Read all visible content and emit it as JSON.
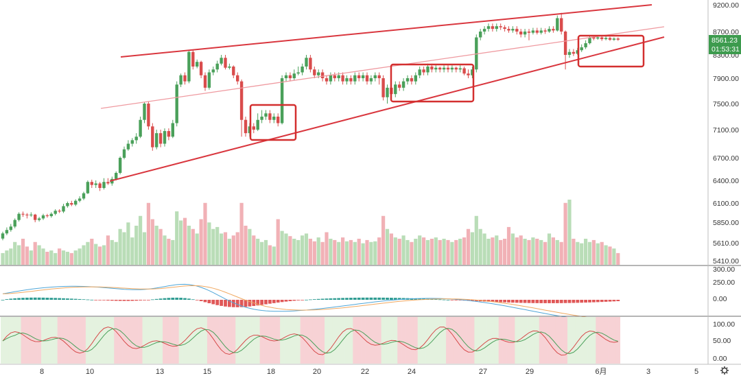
{
  "chart_data": {
    "type": "candlestick",
    "price_axis": {
      "ticks": [
        9200,
        8700,
        8300,
        7900,
        7500,
        7100,
        6700,
        6400,
        6100,
        5850,
        5610,
        5410
      ],
      "tick_labels": [
        "9200.00",
        "8700.00",
        "8300.00",
        "7900.00",
        "7500.00",
        "7100.00",
        "6700.00",
        "6400.00",
        "6100.00",
        "5850.00",
        "5610.00",
        "5410.00"
      ],
      "last_price_label": "8561.23",
      "countdown_label": "01:53:31"
    },
    "x_axis": {
      "tick_labels": [
        "8",
        "10",
        "13",
        "15",
        "18",
        "20",
        "22",
        "24",
        "27",
        "29",
        "6月",
        "3",
        "5"
      ]
    },
    "candles": [
      {
        "o": 5660,
        "c": 5720,
        "h": 5740,
        "l": 5640
      },
      {
        "o": 5720,
        "c": 5760,
        "h": 5790,
        "l": 5700
      },
      {
        "o": 5760,
        "c": 5800,
        "h": 5830,
        "l": 5740
      },
      {
        "o": 5800,
        "c": 5880,
        "h": 5900,
        "l": 5780
      },
      {
        "o": 5880,
        "c": 5960,
        "h": 5980,
        "l": 5860
      },
      {
        "o": 5960,
        "c": 5950,
        "h": 5990,
        "l": 5920
      },
      {
        "o": 5950,
        "c": 5940,
        "h": 5970,
        "l": 5900
      },
      {
        "o": 5940,
        "c": 5950,
        "h": 5980,
        "l": 5920
      },
      {
        "o": 5950,
        "c": 5880,
        "h": 5960,
        "l": 5850
      },
      {
        "o": 5880,
        "c": 5900,
        "h": 5920,
        "l": 5860
      },
      {
        "o": 5900,
        "c": 5940,
        "h": 5960,
        "l": 5880
      },
      {
        "o": 5940,
        "c": 5930,
        "h": 5960,
        "l": 5910
      },
      {
        "o": 5930,
        "c": 5960,
        "h": 5980,
        "l": 5910
      },
      {
        "o": 5960,
        "c": 6000,
        "h": 6020,
        "l": 5940
      },
      {
        "o": 6000,
        "c": 5990,
        "h": 6020,
        "l": 5970
      },
      {
        "o": 5990,
        "c": 6060,
        "h": 6090,
        "l": 5970
      },
      {
        "o": 6060,
        "c": 6100,
        "h": 6120,
        "l": 6040
      },
      {
        "o": 6100,
        "c": 6080,
        "h": 6130,
        "l": 6060
      },
      {
        "o": 6080,
        "c": 6130,
        "h": 6150,
        "l": 6060
      },
      {
        "o": 6130,
        "c": 6160,
        "h": 6190,
        "l": 6110
      },
      {
        "o": 6160,
        "c": 6230,
        "h": 6250,
        "l": 6140
      },
      {
        "o": 6230,
        "c": 6380,
        "h": 6400,
        "l": 6220
      },
      {
        "o": 6380,
        "c": 6340,
        "h": 6410,
        "l": 6300
      },
      {
        "o": 6340,
        "c": 6360,
        "h": 6400,
        "l": 6300
      },
      {
        "o": 6360,
        "c": 6300,
        "h": 6380,
        "l": 6260
      },
      {
        "o": 6300,
        "c": 6380,
        "h": 6430,
        "l": 6280
      },
      {
        "o": 6380,
        "c": 6360,
        "h": 6430,
        "l": 6340
      },
      {
        "o": 6360,
        "c": 6420,
        "h": 6450,
        "l": 6330
      },
      {
        "o": 6420,
        "c": 6500,
        "h": 6520,
        "l": 6400
      },
      {
        "o": 6500,
        "c": 6700,
        "h": 6720,
        "l": 6480
      },
      {
        "o": 6700,
        "c": 6820,
        "h": 6860,
        "l": 6680
      },
      {
        "o": 6820,
        "c": 6900,
        "h": 6950,
        "l": 6800
      },
      {
        "o": 6900,
        "c": 6950,
        "h": 6980,
        "l": 6860
      },
      {
        "o": 6950,
        "c": 7000,
        "h": 7050,
        "l": 6900
      },
      {
        "o": 7000,
        "c": 7250,
        "h": 7300,
        "l": 6980
      },
      {
        "o": 7250,
        "c": 7500,
        "h": 7520,
        "l": 7200
      },
      {
        "o": 7500,
        "c": 7150,
        "h": 7530,
        "l": 7100
      },
      {
        "o": 7150,
        "c": 6850,
        "h": 7200,
        "l": 6800
      },
      {
        "o": 6850,
        "c": 7050,
        "h": 7100,
        "l": 6820
      },
      {
        "o": 7050,
        "c": 6900,
        "h": 7100,
        "l": 6850
      },
      {
        "o": 6900,
        "c": 7080,
        "h": 7120,
        "l": 6860
      },
      {
        "o": 7080,
        "c": 7000,
        "h": 7120,
        "l": 6950
      },
      {
        "o": 7000,
        "c": 7200,
        "h": 7250,
        "l": 6980
      },
      {
        "o": 7200,
        "c": 7800,
        "h": 7850,
        "l": 7150
      },
      {
        "o": 7800,
        "c": 7950,
        "h": 7980,
        "l": 7760
      },
      {
        "o": 7950,
        "c": 7850,
        "h": 8000,
        "l": 7800
      },
      {
        "o": 7850,
        "c": 8350,
        "h": 8380,
        "l": 7820
      },
      {
        "o": 8350,
        "c": 8100,
        "h": 8380,
        "l": 8050
      },
      {
        "o": 8100,
        "c": 8180,
        "h": 8220,
        "l": 8070
      },
      {
        "o": 8180,
        "c": 7950,
        "h": 8200,
        "l": 7900
      },
      {
        "o": 7950,
        "c": 7750,
        "h": 8000,
        "l": 7700
      },
      {
        "o": 7750,
        "c": 8000,
        "h": 8050,
        "l": 7720
      },
      {
        "o": 8000,
        "c": 8050,
        "h": 8100,
        "l": 7950
      },
      {
        "o": 8050,
        "c": 8150,
        "h": 8200,
        "l": 8000
      },
      {
        "o": 8150,
        "c": 8250,
        "h": 8300,
        "l": 8120
      },
      {
        "o": 8250,
        "c": 8080,
        "h": 8300,
        "l": 8050
      },
      {
        "o": 8080,
        "c": 8100,
        "h": 8150,
        "l": 8050
      },
      {
        "o": 8100,
        "c": 7950,
        "h": 8120,
        "l": 7900
      },
      {
        "o": 7950,
        "c": 7850,
        "h": 8000,
        "l": 7800
      },
      {
        "o": 7850,
        "c": 7250,
        "h": 7880,
        "l": 7000
      },
      {
        "o": 7250,
        "c": 7050,
        "h": 7300,
        "l": 7000
      },
      {
        "o": 7050,
        "c": 7150,
        "h": 7200,
        "l": 7000
      },
      {
        "o": 7150,
        "c": 7100,
        "h": 7200,
        "l": 7050
      },
      {
        "o": 7100,
        "c": 7250,
        "h": 7350,
        "l": 7080
      },
      {
        "o": 7250,
        "c": 7300,
        "h": 7400,
        "l": 7200
      },
      {
        "o": 7300,
        "c": 7350,
        "h": 7400,
        "l": 7250
      },
      {
        "o": 7350,
        "c": 7250,
        "h": 7400,
        "l": 7200
      },
      {
        "o": 7250,
        "c": 7300,
        "h": 7350,
        "l": 7200
      },
      {
        "o": 7300,
        "c": 7200,
        "h": 7350,
        "l": 7150
      },
      {
        "o": 7200,
        "c": 7900,
        "h": 7950,
        "l": 7180
      },
      {
        "o": 7900,
        "c": 7950,
        "h": 8000,
        "l": 7850
      },
      {
        "o": 7950,
        "c": 7900,
        "h": 8000,
        "l": 7850
      },
      {
        "o": 7900,
        "c": 7980,
        "h": 8050,
        "l": 7870
      },
      {
        "o": 7980,
        "c": 8000,
        "h": 8100,
        "l": 7950
      },
      {
        "o": 8000,
        "c": 8100,
        "h": 8150,
        "l": 7950
      },
      {
        "o": 8100,
        "c": 8250,
        "h": 8300,
        "l": 8050
      },
      {
        "o": 8250,
        "c": 8050,
        "h": 8300,
        "l": 8000
      },
      {
        "o": 8050,
        "c": 7950,
        "h": 8100,
        "l": 7900
      },
      {
        "o": 7950,
        "c": 8000,
        "h": 8050,
        "l": 7900
      },
      {
        "o": 8000,
        "c": 7900,
        "h": 8050,
        "l": 7850
      },
      {
        "o": 7900,
        "c": 7850,
        "h": 7950,
        "l": 7800
      },
      {
        "o": 7850,
        "c": 7950,
        "h": 8000,
        "l": 7800
      },
      {
        "o": 7950,
        "c": 7900,
        "h": 8000,
        "l": 7850
      },
      {
        "o": 7900,
        "c": 7950,
        "h": 8000,
        "l": 7850
      },
      {
        "o": 7950,
        "c": 7850,
        "h": 8000,
        "l": 7800
      },
      {
        "o": 7850,
        "c": 7900,
        "h": 7950,
        "l": 7800
      },
      {
        "o": 7900,
        "c": 7850,
        "h": 7950,
        "l": 7800
      },
      {
        "o": 7850,
        "c": 7950,
        "h": 8000,
        "l": 7800
      },
      {
        "o": 7950,
        "c": 7900,
        "h": 8000,
        "l": 7850
      },
      {
        "o": 7900,
        "c": 7950,
        "h": 8000,
        "l": 7850
      },
      {
        "o": 7950,
        "c": 7850,
        "h": 8000,
        "l": 7800
      },
      {
        "o": 7850,
        "c": 7900,
        "h": 7950,
        "l": 7800
      },
      {
        "o": 7900,
        "c": 7950,
        "h": 8000,
        "l": 7850
      },
      {
        "o": 7950,
        "c": 7900,
        "h": 8000,
        "l": 7800
      },
      {
        "o": 7900,
        "c": 7600,
        "h": 7950,
        "l": 7550
      },
      {
        "o": 7600,
        "c": 7750,
        "h": 7800,
        "l": 7500
      },
      {
        "o": 7750,
        "c": 7650,
        "h": 7800,
        "l": 7600
      },
      {
        "o": 7650,
        "c": 7800,
        "h": 7850,
        "l": 7600
      },
      {
        "o": 7800,
        "c": 7750,
        "h": 7850,
        "l": 7700
      },
      {
        "o": 7750,
        "c": 7850,
        "h": 7900,
        "l": 7700
      },
      {
        "o": 7850,
        "c": 7900,
        "h": 7950,
        "l": 7800
      },
      {
        "o": 7900,
        "c": 7850,
        "h": 7950,
        "l": 7800
      },
      {
        "o": 7850,
        "c": 7950,
        "h": 8000,
        "l": 7800
      },
      {
        "o": 7950,
        "c": 8050,
        "h": 8100,
        "l": 7900
      },
      {
        "o": 8050,
        "c": 8000,
        "h": 8100,
        "l": 7950
      },
      {
        "o": 8000,
        "c": 8100,
        "h": 8150,
        "l": 7950
      },
      {
        "o": 8100,
        "c": 8050,
        "h": 8150,
        "l": 8000
      },
      {
        "o": 8050,
        "c": 8080,
        "h": 8120,
        "l": 8000
      },
      {
        "o": 8080,
        "c": 8050,
        "h": 8100,
        "l": 8000
      },
      {
        "o": 8050,
        "c": 8080,
        "h": 8120,
        "l": 8000
      },
      {
        "o": 8080,
        "c": 8050,
        "h": 8120,
        "l": 8000
      },
      {
        "o": 8050,
        "c": 8080,
        "h": 8120,
        "l": 8000
      },
      {
        "o": 8080,
        "c": 8050,
        "h": 8100,
        "l": 8000
      },
      {
        "o": 8050,
        "c": 8070,
        "h": 8120,
        "l": 8000
      },
      {
        "o": 8070,
        "c": 7980,
        "h": 8100,
        "l": 7950
      },
      {
        "o": 7980,
        "c": 7950,
        "h": 8050,
        "l": 7900
      },
      {
        "o": 7950,
        "c": 8050,
        "h": 8100,
        "l": 7900
      },
      {
        "o": 8050,
        "c": 8600,
        "h": 8650,
        "l": 8000
      },
      {
        "o": 8600,
        "c": 8700,
        "h": 8750,
        "l": 8550
      },
      {
        "o": 8700,
        "c": 8750,
        "h": 8800,
        "l": 8650
      },
      {
        "o": 8750,
        "c": 8800,
        "h": 8850,
        "l": 8700
      },
      {
        "o": 8800,
        "c": 8750,
        "h": 8850,
        "l": 8700
      },
      {
        "o": 8750,
        "c": 8800,
        "h": 8850,
        "l": 8700
      },
      {
        "o": 8800,
        "c": 8780,
        "h": 8850,
        "l": 8730
      },
      {
        "o": 8780,
        "c": 8750,
        "h": 8820,
        "l": 8700
      },
      {
        "o": 8750,
        "c": 8720,
        "h": 8800,
        "l": 8680
      },
      {
        "o": 8720,
        "c": 8750,
        "h": 8800,
        "l": 8680
      },
      {
        "o": 8750,
        "c": 8700,
        "h": 8800,
        "l": 8650
      },
      {
        "o": 8700,
        "c": 8650,
        "h": 8750,
        "l": 8600
      },
      {
        "o": 8650,
        "c": 8700,
        "h": 8750,
        "l": 8600
      },
      {
        "o": 8700,
        "c": 8680,
        "h": 8750,
        "l": 8550
      },
      {
        "o": 8680,
        "c": 8720,
        "h": 8770,
        "l": 8650
      },
      {
        "o": 8720,
        "c": 8680,
        "h": 8770,
        "l": 8650
      },
      {
        "o": 8680,
        "c": 8720,
        "h": 8770,
        "l": 8650
      },
      {
        "o": 8720,
        "c": 8700,
        "h": 8760,
        "l": 8660
      },
      {
        "o": 8700,
        "c": 8750,
        "h": 8800,
        "l": 8680
      },
      {
        "o": 8750,
        "c": 8720,
        "h": 8800,
        "l": 8680
      },
      {
        "o": 8720,
        "c": 8950,
        "h": 9000,
        "l": 8700
      },
      {
        "o": 8950,
        "c": 8700,
        "h": 9050,
        "l": 8650
      },
      {
        "o": 8700,
        "c": 8300,
        "h": 8720,
        "l": 8050
      },
      {
        "o": 8300,
        "c": 8350,
        "h": 8400,
        "l": 8250
      },
      {
        "o": 8350,
        "c": 8320,
        "h": 8400,
        "l": 8280
      },
      {
        "o": 8320,
        "c": 8380,
        "h": 8420,
        "l": 8300
      },
      {
        "o": 8380,
        "c": 8430,
        "h": 8480,
        "l": 8350
      },
      {
        "o": 8430,
        "c": 8500,
        "h": 8550,
        "l": 8400
      },
      {
        "o": 8500,
        "c": 8600,
        "h": 8620,
        "l": 8480
      },
      {
        "o": 8600,
        "c": 8580,
        "h": 8620,
        "l": 8550
      },
      {
        "o": 8580,
        "c": 8600,
        "h": 8630,
        "l": 8560
      },
      {
        "o": 8600,
        "c": 8570,
        "h": 8620,
        "l": 8540
      },
      {
        "o": 8570,
        "c": 8590,
        "h": 8620,
        "l": 8550
      },
      {
        "o": 8590,
        "c": 8560,
        "h": 8610,
        "l": 8540
      },
      {
        "o": 8560,
        "c": 8580,
        "h": 8600,
        "l": 8540
      },
      {
        "o": 8580,
        "c": 8561,
        "h": 8600,
        "l": 8540
      }
    ],
    "volume_scale_ticks": [
      5410,
      5610,
      5850,
      6100
    ],
    "volumes": [
      0.18,
      0.22,
      0.25,
      0.35,
      0.3,
      0.4,
      0.28,
      0.22,
      0.35,
      0.3,
      0.25,
      0.2,
      0.22,
      0.18,
      0.25,
      0.22,
      0.2,
      0.18,
      0.22,
      0.25,
      0.3,
      0.35,
      0.4,
      0.32,
      0.28,
      0.3,
      0.45,
      0.38,
      0.35,
      0.55,
      0.5,
      0.65,
      0.42,
      0.6,
      0.75,
      0.5,
      0.95,
      0.7,
      0.6,
      0.55,
      0.45,
      0.4,
      0.38,
      0.82,
      0.68,
      0.72,
      0.6,
      0.55,
      0.48,
      0.7,
      0.95,
      0.65,
      0.55,
      0.58,
      0.48,
      0.5,
      0.4,
      0.45,
      0.5,
      0.95,
      0.6,
      0.55,
      0.45,
      0.4,
      0.35,
      0.38,
      0.3,
      0.28,
      0.7,
      0.52,
      0.48,
      0.44,
      0.4,
      0.38,
      0.45,
      0.48,
      0.4,
      0.36,
      0.42,
      0.35,
      0.5,
      0.4,
      0.38,
      0.35,
      0.42,
      0.36,
      0.38,
      0.35,
      0.4,
      0.33,
      0.38,
      0.35,
      0.36,
      0.42,
      0.75,
      0.55,
      0.48,
      0.42,
      0.4,
      0.45,
      0.38,
      0.35,
      0.4,
      0.45,
      0.42,
      0.38,
      0.4,
      0.42,
      0.38,
      0.4,
      0.38,
      0.35,
      0.38,
      0.4,
      0.42,
      0.55,
      0.5,
      0.75,
      0.55,
      0.48,
      0.4,
      0.42,
      0.45,
      0.38,
      0.4,
      0.58,
      0.48,
      0.42,
      0.45,
      0.4,
      0.38,
      0.42,
      0.4,
      0.38,
      0.35,
      0.48,
      0.42,
      0.38,
      0.35,
      0.95,
      1.0,
      0.4,
      0.35,
      0.33,
      0.4,
      0.35,
      0.38,
      0.33,
      0.35,
      0.3,
      0.28,
      0.25,
      0.18
    ],
    "macd": {
      "ticks": [
        300,
        250,
        0
      ],
      "tick_labels": [
        "300.00",
        "250.00",
        "0.00"
      ]
    },
    "stochastic": {
      "ticks": [
        100,
        50,
        0
      ],
      "tick_labels": [
        "100.00",
        "50.00",
        "0.00"
      ]
    },
    "colors": {
      "up": "#4aa05a",
      "down": "#d94c4c",
      "trendline": "#d9363e",
      "midline": "#ef9aa0",
      "box": "#d32f2f",
      "volume_up": "#b9ddb7",
      "volume_down": "#f1b1b6",
      "zone_up": "#e4f2df",
      "zone_down": "#f7d2d5",
      "macd_line": "#4fa6d8",
      "signal_line": "#f0a860",
      "hist_up": "#2f9c92",
      "hist_down": "#e05757",
      "stoch_k": "#d64a4a",
      "stoch_d": "#4aa05a",
      "stoch_ma": "#f0a860",
      "last_price_tag": "#3d9b4e"
    }
  },
  "icons": {
    "settings": "gear-icon"
  }
}
